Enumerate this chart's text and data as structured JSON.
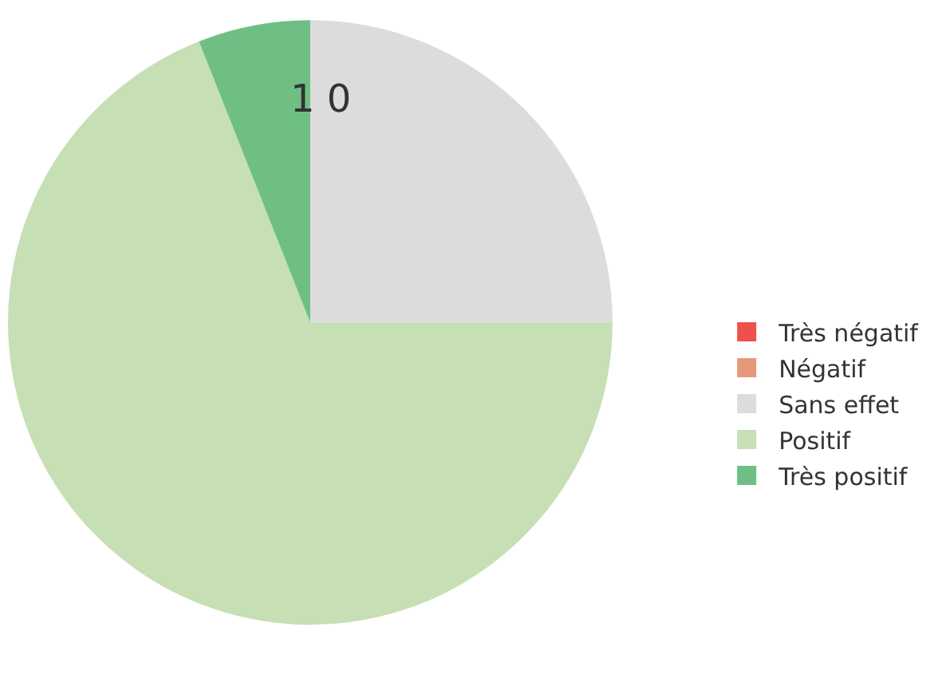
{
  "chart_data": {
    "type": "pie",
    "categories": [
      "Très négatif",
      "Négatif",
      "Sans effet",
      "Positif",
      "Très positif"
    ],
    "values": [
      0,
      0,
      25,
      69,
      6
    ],
    "colors": [
      "#f0504a",
      "#e8987a",
      "#dcdcdc",
      "#c6dfb4",
      "#6fbf85"
    ],
    "annotations": [
      "1 0"
    ],
    "legend": "right"
  }
}
